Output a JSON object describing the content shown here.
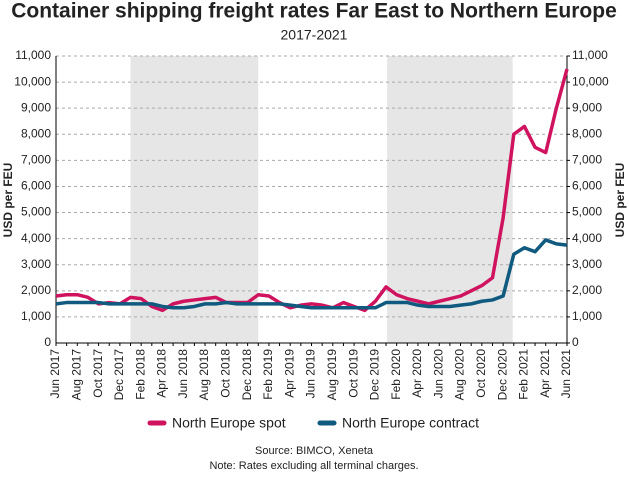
{
  "chart_data": {
    "type": "line",
    "title": "Container shipping freight rates Far East to Northern Europe",
    "subtitle": "2017-2021",
    "y_label": "USD per FEU",
    "y2_label": "USD per FEU",
    "source": "Source: BIMCO, Xeneta",
    "note": "Note: Rates excluding all terminal charges.",
    "categories": [
      "Jun 2017",
      null,
      "Aug 2017",
      null,
      "Oct 2017",
      null,
      "Dec 2017",
      null,
      "Feb 2018",
      null,
      "Apr 2018",
      null,
      "Jun 2018",
      null,
      "Aug 2018",
      null,
      "Oct 2018",
      null,
      "Dec 2018",
      null,
      "Feb 2019",
      null,
      "Apr 2019",
      null,
      "Jun 2019",
      null,
      "Aug 2019",
      null,
      "Oct 2019",
      null,
      "Dec 2019",
      null,
      "Feb 2020",
      null,
      "Apr 2020",
      null,
      "Jun 2020",
      null,
      "Aug 2020",
      null,
      "Oct 2020",
      null,
      "Dec 2020",
      null,
      "Feb 2021",
      null,
      "Apr 2021",
      null,
      "Jun 2021"
    ],
    "series": [
      {
        "name": "North Europe spot",
        "color": "#d0135f",
        "values": [
          1800,
          1850,
          1850,
          1750,
          1500,
          1550,
          1500,
          1750,
          1700,
          1400,
          1250,
          1500,
          1600,
          1650,
          1700,
          1750,
          1550,
          1550,
          1550,
          1850,
          1800,
          1550,
          1350,
          1450,
          1500,
          1450,
          1350,
          1550,
          1400,
          1250,
          1600,
          2150,
          1850,
          1700,
          1600,
          1500,
          1600,
          1700,
          1800,
          2000,
          2200,
          2500,
          4800,
          8000,
          8300,
          7500,
          7300,
          9000,
          10500
        ]
      },
      {
        "name": "North Europe contract",
        "color": "#0f5a7e",
        "axis": "y2",
        "values": [
          1500,
          1550,
          1550,
          1550,
          1550,
          1500,
          1500,
          1500,
          1500,
          1500,
          1400,
          1350,
          1350,
          1400,
          1500,
          1500,
          1550,
          1500,
          1500,
          1500,
          1500,
          1500,
          1450,
          1400,
          1350,
          1350,
          1350,
          1350,
          1350,
          1350,
          1350,
          1550,
          1550,
          1550,
          1450,
          1400,
          1400,
          1400,
          1450,
          1500,
          1600,
          1650,
          1800,
          3400,
          3650,
          3500,
          3950,
          3800,
          3750
        ]
      }
    ],
    "ylim": [
      0,
      11000
    ],
    "yticks": [
      0,
      {
        "value": 1000,
        "label": "1,000"
      },
      {
        "value": 2000,
        "label": "2,000"
      },
      {
        "value": 3000,
        "label": "3,000"
      },
      {
        "value": 4000,
        "label": "4,000"
      },
      {
        "value": 5000,
        "label": "5,000"
      },
      {
        "value": 6000,
        "label": "6,000"
      },
      {
        "value": 7000,
        "label": "7,000"
      },
      {
        "value": 8000,
        "label": "8,000"
      },
      {
        "value": 9000,
        "label": "9,000"
      },
      {
        "value": 10000,
        "label": "10,000"
      },
      {
        "value": 11000,
        "label": "11,000"
      }
    ],
    "y2lim": [
      0,
      11000
    ],
    "y2ticks": [
      0,
      {
        "value": 1000,
        "label": "1,000"
      },
      {
        "value": 2000,
        "label": "2,000"
      },
      {
        "value": 3000,
        "label": "3,000"
      },
      {
        "value": 4000,
        "label": "4,000"
      },
      {
        "value": 5000,
        "label": "5,000"
      },
      {
        "value": 6000,
        "label": "6,000"
      },
      {
        "value": 7000,
        "label": "7,000"
      },
      {
        "value": 8000,
        "label": "8,000"
      },
      {
        "value": 9000,
        "label": "9,000"
      },
      {
        "value": 10000,
        "label": "10,000"
      },
      {
        "value": 11000,
        "label": "11,000"
      }
    ],
    "grid": true,
    "legend": "bottom"
  }
}
